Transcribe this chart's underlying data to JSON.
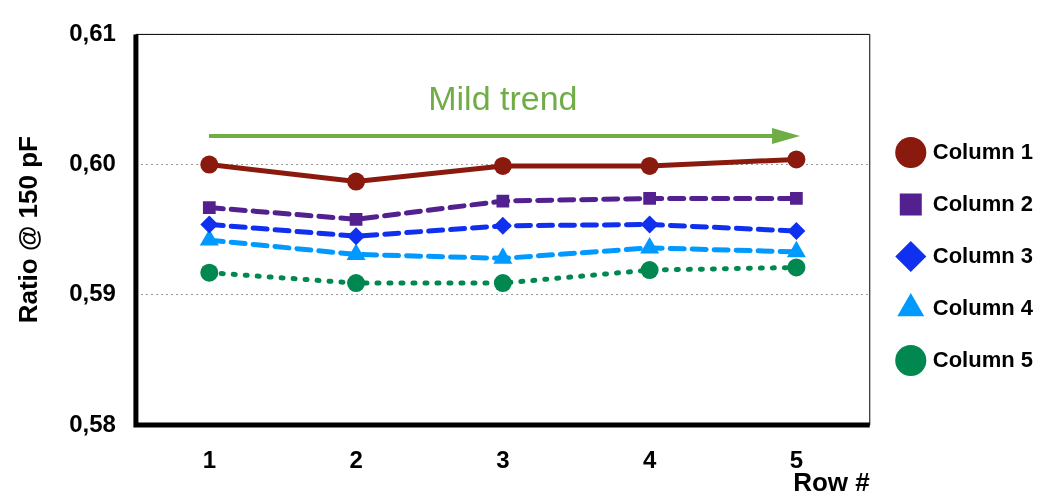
{
  "chart_data": {
    "type": "line",
    "xlabel": "Row #",
    "ylabel": "Ratio @ 150 pF",
    "categories": [
      "1",
      "2",
      "3",
      "4",
      "5"
    ],
    "ylim": [
      0.58,
      0.61
    ],
    "yticks": [
      {
        "value": 0.58,
        "label": "0,58"
      },
      {
        "value": 0.59,
        "label": "0,59"
      },
      {
        "value": 0.6,
        "label": "0,60"
      },
      {
        "value": 0.61,
        "label": "0,61"
      }
    ],
    "grid": "y",
    "legend": "right",
    "annotations": [
      "Mild trend"
    ],
    "series": [
      {
        "name": "Column 1",
        "color": "#8b1a0e",
        "marker": "circle",
        "line_style": "solid",
        "values": [
          0.6,
          0.5987,
          0.5999,
          0.5999,
          0.6004
        ]
      },
      {
        "name": "Column 2",
        "color": "#52208f",
        "marker": "square",
        "line_style": "dashed",
        "values": [
          0.5967,
          0.5958,
          0.5972,
          0.5974,
          0.5974
        ]
      },
      {
        "name": "Column 3",
        "color": "#1030f0",
        "marker": "diamond",
        "line_style": "dashed",
        "values": [
          0.5954,
          0.5945,
          0.5953,
          0.5954,
          0.5949
        ]
      },
      {
        "name": "Column 4",
        "color": "#0099ff",
        "marker": "triangle",
        "line_style": "dashed",
        "values": [
          0.5942,
          0.5931,
          0.5928,
          0.5936,
          0.5933
        ]
      },
      {
        "name": "Column 5",
        "color": "#008850",
        "marker": "circle",
        "line_style": "dotted",
        "values": [
          0.5917,
          0.5909,
          0.5909,
          0.5919,
          0.5921
        ]
      }
    ]
  }
}
